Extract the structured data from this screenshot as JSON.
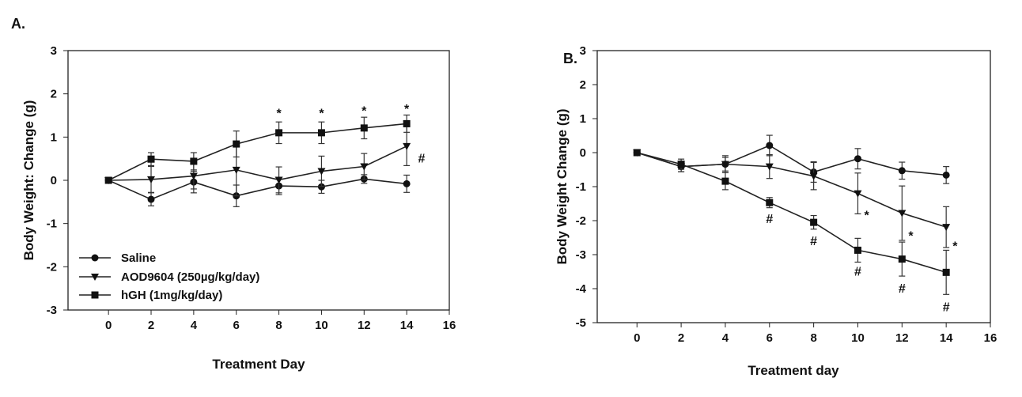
{
  "chart_data": [
    {
      "type": "line",
      "panel_label": "A.",
      "xlabel": "Treatment Day",
      "ylabel": "Body Weight: Change (g)",
      "xlim": [
        -1.9,
        16
      ],
      "ylim": [
        -3,
        3
      ],
      "xticks": [
        0,
        2,
        4,
        6,
        8,
        10,
        12,
        14,
        16
      ],
      "yticks": [
        -3,
        -2,
        -1,
        0,
        1,
        2,
        3
      ],
      "legend_position": "bottom-left",
      "x": [
        0,
        2,
        4,
        6,
        8,
        10,
        12,
        14
      ],
      "series": [
        {
          "name": "Saline",
          "marker": "circle",
          "values": [
            0,
            -0.44,
            -0.04,
            -0.36,
            -0.13,
            -0.15,
            0.03,
            -0.08
          ],
          "errors": [
            0,
            0.15,
            0.25,
            0.25,
            0.2,
            0.15,
            0.1,
            0.2
          ]
        },
        {
          "name": "AOD9604 (250µg/kg/day)",
          "marker": "triangle-down",
          "values": [
            0,
            0.02,
            0.1,
            0.24,
            0.01,
            0.21,
            0.32,
            0.79
          ],
          "errors": [
            0,
            0.3,
            0.3,
            0.6,
            0.3,
            0.35,
            0.3,
            0.45
          ]
        },
        {
          "name": "hGH (1mg/kg/day)",
          "marker": "square",
          "values": [
            0,
            0.49,
            0.44,
            0.84,
            1.1,
            1.1,
            1.21,
            1.31
          ],
          "errors": [
            0,
            0.15,
            0.2,
            0.3,
            0.25,
            0.25,
            0.25,
            0.2
          ]
        }
      ],
      "annotations": [
        {
          "text": "*",
          "x": 8,
          "y": 1.55
        },
        {
          "text": "*",
          "x": 10,
          "y": 1.55
        },
        {
          "text": "*",
          "x": 12,
          "y": 1.6
        },
        {
          "text": "*",
          "x": 14,
          "y": 1.65
        },
        {
          "text": "#",
          "x": 14.7,
          "y": 0.5
        }
      ]
    },
    {
      "type": "line",
      "panel_label": "B.",
      "xlabel": "Treatment day",
      "ylabel": "Body Weight Change (g)",
      "xlim": [
        -1.8,
        16
      ],
      "ylim": [
        -5,
        3
      ],
      "xticks": [
        0,
        2,
        4,
        6,
        8,
        10,
        12,
        14,
        16
      ],
      "yticks": [
        -5,
        -4,
        -3,
        -2,
        -1,
        0,
        1,
        2,
        3
      ],
      "x": [
        0,
        2,
        4,
        6,
        8,
        10,
        12,
        14
      ],
      "series": [
        {
          "name": "Saline",
          "marker": "circle",
          "values": [
            0,
            -0.41,
            -0.34,
            0.21,
            -0.57,
            -0.18,
            -0.53,
            -0.66
          ],
          "errors": [
            0,
            0.15,
            0.2,
            0.3,
            0.3,
            0.3,
            0.25,
            0.25
          ]
        },
        {
          "name": "AOD9604",
          "marker": "triangle-down",
          "values": [
            0,
            -0.41,
            -0.34,
            -0.41,
            -0.69,
            -1.2,
            -1.78,
            -2.19
          ],
          "errors": [
            0,
            0.15,
            0.25,
            0.35,
            0.4,
            0.6,
            0.8,
            0.6
          ]
        },
        {
          "name": "hGH",
          "marker": "square",
          "values": [
            0,
            -0.34,
            -0.84,
            -1.47,
            -2.05,
            -2.87,
            -3.13,
            -3.52
          ],
          "errors": [
            0,
            0.15,
            0.25,
            0.15,
            0.2,
            0.35,
            0.5,
            0.65
          ]
        }
      ],
      "annotations": [
        {
          "text": "#",
          "x": 6,
          "y": -1.95
        },
        {
          "text": "#",
          "x": 8,
          "y": -2.6
        },
        {
          "text": "#",
          "x": 10,
          "y": -3.5
        },
        {
          "text": "#",
          "x": 12,
          "y": -4.0
        },
        {
          "text": "#",
          "x": 14,
          "y": -4.55
        },
        {
          "text": "*",
          "x": 10.4,
          "y": -1.85
        },
        {
          "text": "*",
          "x": 12.4,
          "y": -2.45
        },
        {
          "text": "*",
          "x": 14.4,
          "y": -2.75
        }
      ]
    }
  ]
}
